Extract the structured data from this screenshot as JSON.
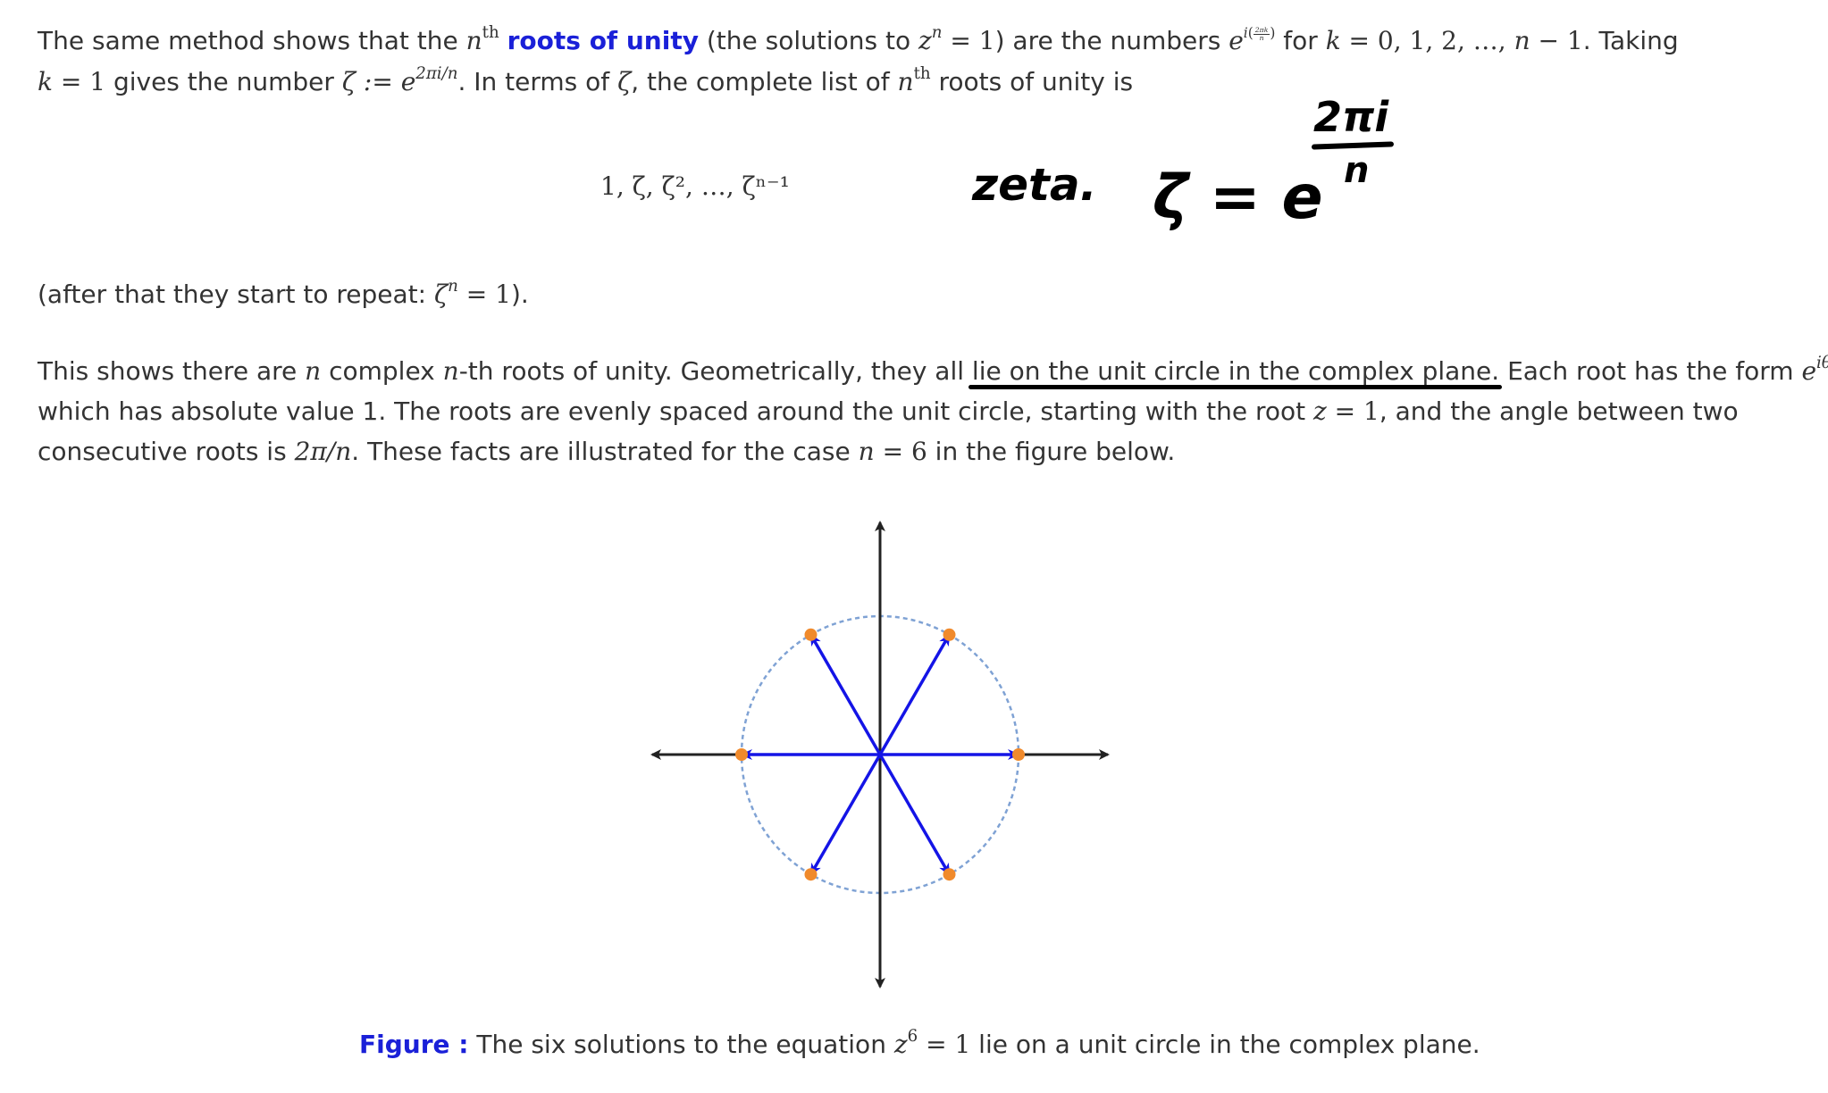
{
  "paragraph1": {
    "l1_a": "The same method shows that the ",
    "n": "n",
    "th": "th",
    "link": "roots of unity",
    "l1_b": " (the solutions to ",
    "zn": "z",
    "eq1": " = 1",
    "l1_c": ") are the numbers ",
    "e": "e",
    "exp_i": "i",
    "frac_num": "2πk",
    "frac_den": "n",
    "l1_d": " for ",
    "k": "k",
    "krange": " = 0, 1, 2, …, ",
    "nminus": "n",
    "minus1": " − 1",
    "l1_e": ". Taking",
    "l2_k": "k",
    "l2_a": " = 1",
    "l2_b": " gives the number ",
    "zeta_def": "ζ := e",
    "zeta_exp": "2πi/n",
    "l2_c": ". In terms of ",
    "zeta": "ζ",
    "l2_d": ", the complete list of ",
    "l2_n": "n",
    "l2_th": "th",
    "l2_e": " roots of unity is"
  },
  "display_list": "1,  ζ,  ζ², …,  ζⁿ⁻¹",
  "handwriting": {
    "word": "zeta.",
    "lhs": "ζ = e",
    "num": "2πi",
    "den": "n"
  },
  "paragraph2": {
    "a": "(after that they start to repeat: ",
    "zeta": "ζ",
    "sup": "n",
    "b": " = 1",
    "c": ")."
  },
  "paragraph3": {
    "l1_a": "This shows there are ",
    "n1": "n",
    "l1_b": " complex ",
    "n2": "n",
    "l1_c": "-th roots of unity. Geometrically, they all ",
    "underlined": "lie on the unit circle in the complex plane",
    "l1_d": ". Each root has the form ",
    "e": "e",
    "exp": "iθ",
    "l1_e": ",",
    "l2_a": "which has absolute value 1. The roots are evenly spaced around the unit circle, starting with the root ",
    "z": "z",
    "l2_eq": " = 1",
    "l2_b": ", and the angle between two",
    "l3_a": "consecutive roots is ",
    "angle": "2π/n",
    "l3_b": ". These facts are illustrated for the case ",
    "n3": "n",
    "l3_eq": " = 6",
    "l3_c": " in the figure below."
  },
  "figure": {
    "n_roots": 6,
    "colors": {
      "vector": "#1414e6",
      "point": "#f08a2c",
      "circle": "#7fa2d4",
      "axis": "#222222"
    }
  },
  "caption": {
    "label": "Figure :",
    "a": " The six solutions to the equation ",
    "z": "z",
    "sup": "6",
    "eq": " = 1",
    "b": " lie on a unit circle in the complex plane."
  },
  "colors": {
    "link": "#1a20d8",
    "text": "#333333"
  }
}
